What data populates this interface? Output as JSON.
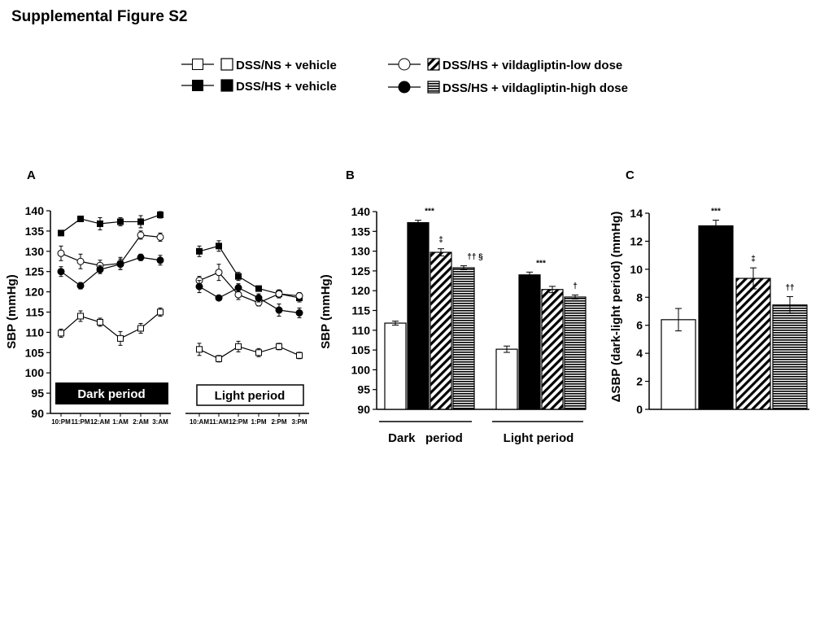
{
  "figure_title": "Supplemental Figure S2",
  "legend": {
    "entries": [
      {
        "label": "DSS/NS + vehicle",
        "marker": "open-square",
        "bar": "white"
      },
      {
        "label": "DSS/HS + vehicle",
        "marker": "filled-square",
        "bar": "black"
      },
      {
        "label": "DSS/HS + vildagliptin-low dose",
        "marker": "open-circle",
        "bar": "diagonal-hatch"
      },
      {
        "label": "DSS/HS + vildagliptin-high dose",
        "marker": "filled-circle",
        "bar": "horizontal-stripes"
      }
    ]
  },
  "chart_data": [
    {
      "panel": "A",
      "type": "line",
      "ylabel": "SBP (mmHg)",
      "ylim": [
        90,
        140
      ],
      "yticks": [
        90,
        95,
        100,
        105,
        110,
        115,
        120,
        125,
        130,
        135,
        140
      ],
      "x_dark": [
        "10:PM",
        "11:PM",
        "12:AM",
        "1:AM",
        "2:AM",
        "3:AM"
      ],
      "x_light": [
        "10:AM",
        "11:AM",
        "12:PM",
        "1:PM",
        "2:PM",
        "3:PM"
      ],
      "period_labels": {
        "dark": "Dark period",
        "light": "Light period"
      },
      "series": [
        {
          "name": "DSS/NS + vehicle",
          "marker": "open-square",
          "dark": [
            109.8,
            114.0,
            112.5,
            108.5,
            111.0,
            115.0
          ],
          "dark_err": [
            1.0,
            1.3,
            1.0,
            1.7,
            1.2,
            1.0
          ],
          "light": [
            105.8,
            103.5,
            106.5,
            105.0,
            106.5,
            104.3
          ],
          "light_err": [
            1.5,
            0.8,
            1.3,
            1.0,
            0.8,
            0.8
          ]
        },
        {
          "name": "DSS/HS + vehicle",
          "marker": "filled-square",
          "dark": [
            134.5,
            138.0,
            136.8,
            137.3,
            137.3,
            139.0
          ],
          "dark_err": [
            0.5,
            0.5,
            1.5,
            1.0,
            1.5,
            0.8
          ],
          "light": [
            130.0,
            131.3,
            123.8,
            120.8,
            119.5,
            118.5
          ],
          "light_err": [
            1.3,
            1.3,
            1.0,
            0.5,
            0.8,
            1.0
          ]
        },
        {
          "name": "DSS/HS + vildagliptin-low dose",
          "marker": "open-circle",
          "dark": [
            129.5,
            127.5,
            126.5,
            127.0,
            134.0,
            133.5
          ],
          "dark_err": [
            1.8,
            1.8,
            1.3,
            1.5,
            1.0,
            1.0
          ],
          "light": [
            122.8,
            124.8,
            119.3,
            117.3,
            119.5,
            119.0
          ],
          "light_err": [
            1.0,
            2.0,
            1.2,
            0.8,
            1.0,
            0.8
          ]
        },
        {
          "name": "DSS/HS + vildagliptin-high dose",
          "marker": "filled-circle",
          "dark": [
            125.0,
            121.5,
            125.5,
            126.8,
            128.5,
            127.8
          ],
          "dark_err": [
            1.2,
            0.8,
            1.0,
            1.3,
            0.8,
            1.2
          ],
          "light": [
            121.3,
            118.5,
            121.0,
            118.5,
            115.5,
            114.8
          ],
          "light_err": [
            1.5,
            0.6,
            1.0,
            1.0,
            1.5,
            1.2
          ]
        }
      ]
    },
    {
      "panel": "B",
      "type": "bar",
      "ylabel": "SBP (mmHg)",
      "ylim": [
        90,
        140
      ],
      "yticks": [
        90,
        95,
        100,
        105,
        110,
        115,
        120,
        125,
        130,
        135,
        140
      ],
      "groups": [
        "Dark   period",
        "Light period"
      ],
      "series": [
        {
          "name": "DSS/NS + vehicle",
          "fill": "white",
          "values": [
            111.8,
            105.2
          ],
          "err": [
            0.5,
            0.8
          ],
          "annot": [
            "",
            ""
          ]
        },
        {
          "name": "DSS/HS + vehicle",
          "fill": "black",
          "values": [
            137.2,
            124.0
          ],
          "err": [
            0.6,
            0.7
          ],
          "annot": [
            "***",
            "***"
          ]
        },
        {
          "name": "DSS/HS + vildagliptin-low dose",
          "fill": "diagonal-hatch",
          "values": [
            129.7,
            120.3
          ],
          "err": [
            0.9,
            0.8
          ],
          "annot": [
            "‡",
            ""
          ]
        },
        {
          "name": "DSS/HS + vildagliptin-high dose",
          "fill": "horizontal-stripes",
          "values": [
            125.8,
            118.4
          ],
          "err": [
            0.5,
            0.5
          ],
          "annot": [
            "†† §",
            "†"
          ]
        }
      ]
    },
    {
      "panel": "C",
      "type": "bar",
      "ylabel": "ΔSBP (dark-light period) (mmHg)",
      "ylim": [
        0,
        14
      ],
      "yticks": [
        0,
        2,
        4,
        6,
        8,
        10,
        12,
        14
      ],
      "categories": [
        "DSS/NS + vehicle",
        "DSS/HS + vehicle",
        "DSS/HS + vildagliptin-low dose",
        "DSS/HS + vildagliptin-high dose"
      ],
      "fills": [
        "white",
        "black",
        "diagonal-hatch",
        "horizontal-stripes"
      ],
      "values": [
        6.4,
        13.1,
        9.35,
        7.45
      ],
      "err": [
        0.8,
        0.4,
        0.75,
        0.6
      ],
      "annot": [
        "",
        "***",
        "‡",
        "††"
      ]
    }
  ]
}
